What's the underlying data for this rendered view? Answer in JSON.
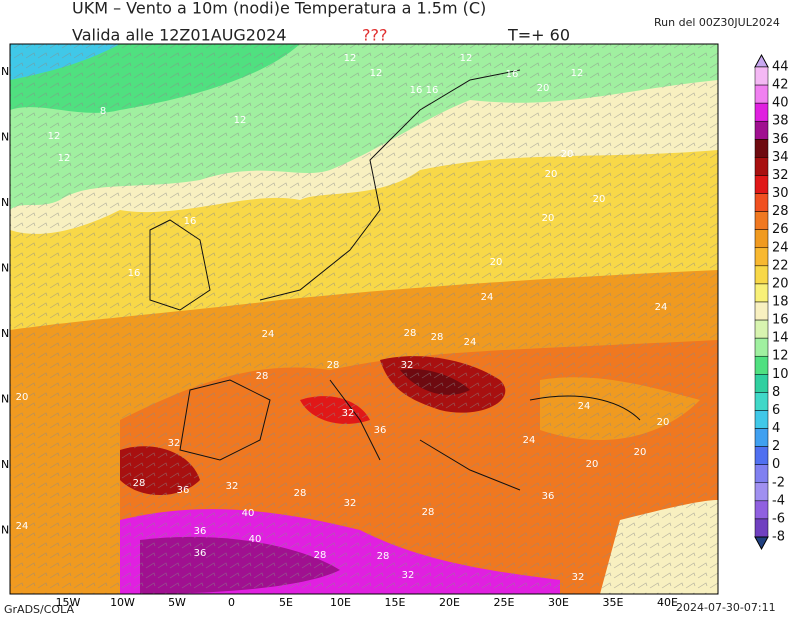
{
  "header": {
    "title": "UKM – Vento a 10m (nodi)e Temperatura a 1.5m (C)",
    "valid": "Valida alle 12Z01AUG2024",
    "flag": "???",
    "step": "T=+ 60",
    "run": "Run del 00Z30JUL2024"
  },
  "map": {
    "lon_labels": [
      "15W",
      "10W",
      "5W",
      "0",
      "5E",
      "10E",
      "15E",
      "20E",
      "25E",
      "30E",
      "35E",
      "40E"
    ],
    "lat_labels": [
      "N",
      "N",
      "N",
      "N",
      "N",
      "N",
      "N",
      "N"
    ],
    "contour_labels": [
      "12",
      "12",
      "12",
      "12",
      "16",
      "16",
      "12",
      "8",
      "12",
      "12",
      "16",
      "20",
      "20",
      "20",
      "16",
      "20",
      "20",
      "24",
      "24",
      "20",
      "24",
      "28",
      "28",
      "32",
      "28",
      "24",
      "28",
      "32",
      "36",
      "32",
      "28",
      "32",
      "36",
      "40",
      "36",
      "28",
      "32",
      "28",
      "24",
      "20",
      "20",
      "24",
      "36",
      "40",
      "28",
      "32",
      "36",
      "32",
      "28",
      "20",
      "24",
      "16",
      "20"
    ]
  },
  "colorbar": {
    "labels": [
      44,
      42,
      40,
      38,
      36,
      34,
      32,
      30,
      28,
      26,
      24,
      22,
      20,
      18,
      16,
      14,
      12,
      10,
      8,
      6,
      4,
      2,
      0,
      -2,
      -4,
      -6,
      -8
    ],
    "colors": [
      "#c8a8f0",
      "#f4b8f4",
      "#f080f0",
      "#e020e0",
      "#a01090",
      "#6e0a10",
      "#a81010",
      "#e01818",
      "#f05020",
      "#f07820",
      "#f09a20",
      "#f8b830",
      "#f8d848",
      "#f8f078",
      "#f8f0c0",
      "#d8f4b0",
      "#a0f0a0",
      "#50e080",
      "#30d0a0",
      "#40d8c8",
      "#40c8e8",
      "#40a0f0",
      "#5070f0",
      "#8080f0",
      "#a090f0",
      "#9060e0",
      "#7040c0",
      "#204080"
    ]
  },
  "footer": {
    "credit": "GrADS/COLA",
    "timestamp": "2024-07-30-07:11"
  }
}
